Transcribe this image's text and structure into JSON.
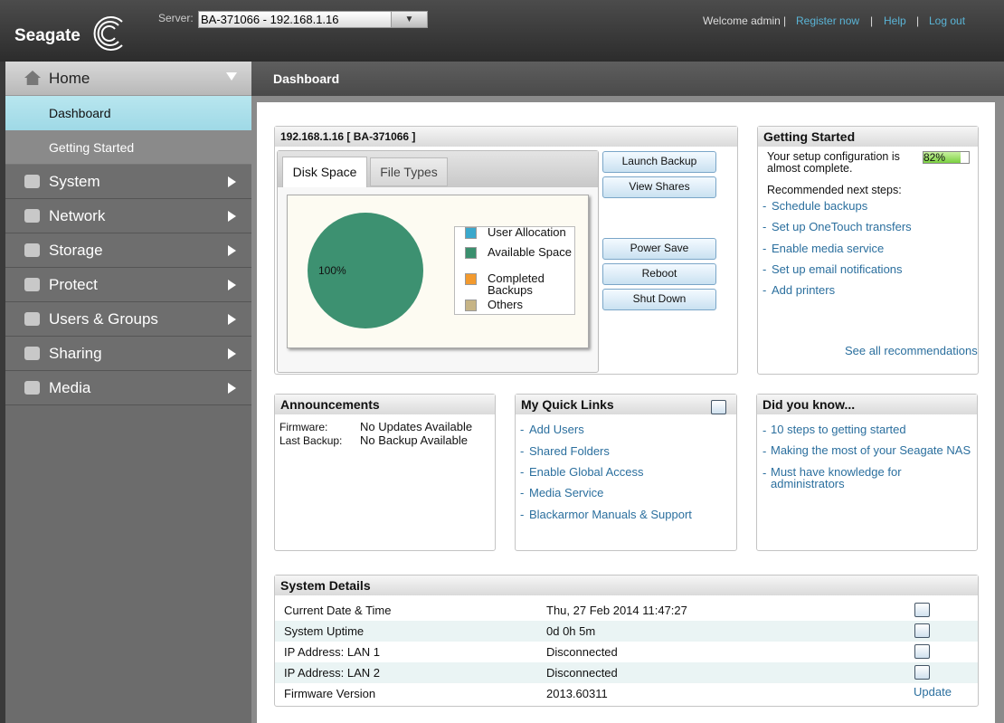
{
  "header": {
    "brand": "Seagate",
    "server_label": "Server:",
    "server": "BA-371066 - 192.168.1.16",
    "welcome": "Welcome admin",
    "separator": "|",
    "links": [
      "Register now",
      "Help",
      "Log out"
    ]
  },
  "sidebar": {
    "home": "Home",
    "home_items": [
      "Dashboard",
      "Getting Started"
    ],
    "sections": [
      "System",
      "Network",
      "Storage",
      "Protect",
      "Users & Groups",
      "Sharing",
      "Media"
    ]
  },
  "page_title": "Dashboard",
  "device": {
    "title": "192.168.1.16 [ BA-371066 ]",
    "tabs": [
      "Disk Space",
      "File Types"
    ],
    "pie": {
      "value": 100,
      "value_label": "100%",
      "color": "#3d9171"
    },
    "legend": [
      {
        "name": "User Allocation",
        "color": "#3aa8cc"
      },
      {
        "name": "Available Space",
        "color": "#3a8f6e"
      },
      {
        "name": "Completed Backups",
        "color": "#f39a2e"
      },
      {
        "name": "Others",
        "color": "#c6b486"
      }
    ],
    "buttons": [
      "Launch Backup",
      "View Shares",
      "Power Save",
      "Reboot",
      "Shut Down"
    ]
  },
  "getting_started": {
    "title": "Getting Started",
    "status": "Your setup configuration is almost complete.",
    "progress": 82,
    "progress_label": "82%",
    "next_label": "Recommended next steps:",
    "bullet": "-",
    "steps": [
      "Schedule backups",
      "Set up OneTouch transfers",
      "Enable media service",
      "Set up email notifications",
      "Add printers"
    ],
    "see_all": "See all recommendations"
  },
  "announcements": {
    "title": "Announcements",
    "rows": [
      [
        "Firmware:",
        "No Updates Available"
      ],
      [
        "Last Backup:",
        "No Backup Available"
      ]
    ]
  },
  "quick_links": {
    "title": "My Quick Links",
    "links": [
      "Add Users",
      "Shared Folders",
      "Enable Global Access",
      "Media Service",
      "Blackarmor Manuals & Support"
    ]
  },
  "did_you_know": {
    "title": "Did you know...",
    "links": [
      "10 steps to getting started",
      "Making the most of your Seagate NAS",
      "Must have knowledge for administrators"
    ]
  },
  "system_details": {
    "title": "System Details",
    "rows": [
      [
        "Current Date & Time",
        "Thu, 27 Feb 2014 11:47:27"
      ],
      [
        "System Uptime",
        "0d 0h 5m"
      ],
      [
        "IP Address: LAN 1",
        "Disconnected"
      ],
      [
        "IP Address: LAN 2",
        "Disconnected"
      ],
      [
        "Firmware Version",
        "2013.60311"
      ]
    ],
    "update": "Update"
  }
}
